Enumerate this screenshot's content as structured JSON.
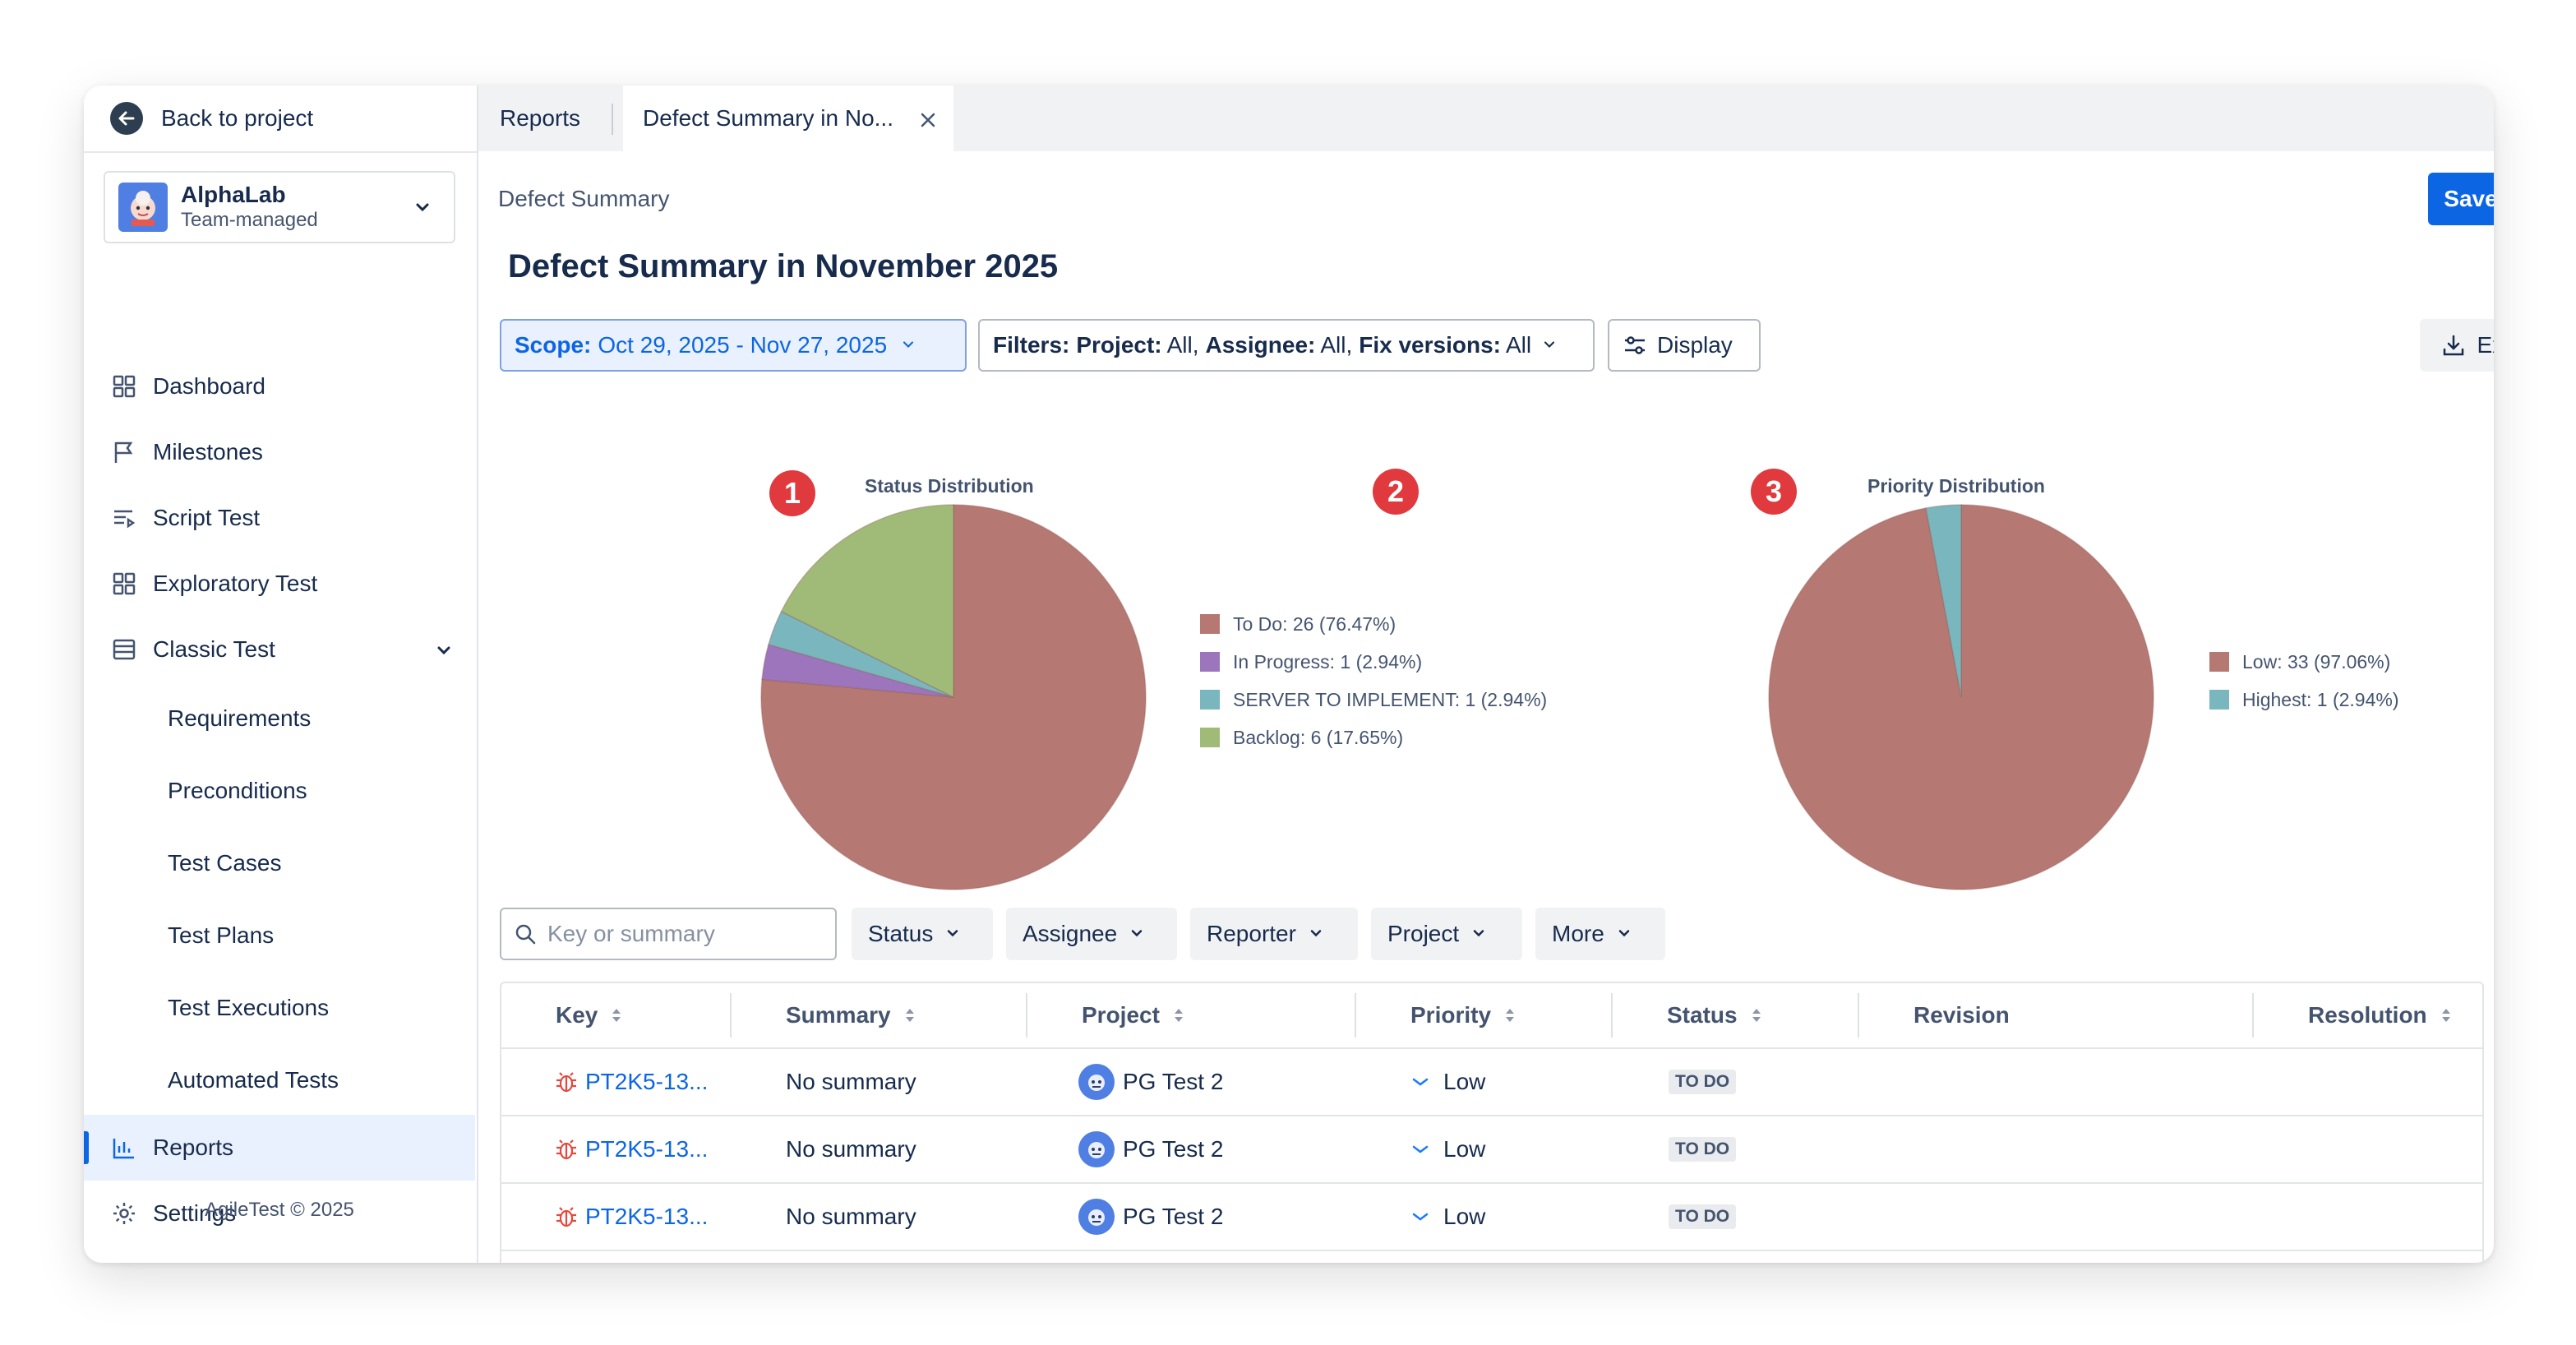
{
  "sidebar": {
    "back_label": "Back to project",
    "project": {
      "name": "AlphaLab",
      "type": "Team-managed"
    },
    "nav": [
      {
        "label": "Dashboard",
        "icon": "grid-icon"
      },
      {
        "label": "Milestones",
        "icon": "flag-icon"
      },
      {
        "label": "Script Test",
        "icon": "script-icon"
      },
      {
        "label": "Exploratory Test",
        "icon": "grid-icon"
      },
      {
        "label": "Classic Test",
        "icon": "classic-icon"
      }
    ],
    "classic_children": [
      "Requirements",
      "Preconditions",
      "Test Cases",
      "Test Plans",
      "Test Executions",
      "Automated Tests"
    ],
    "reports_label": "Reports",
    "settings_label": "Settings",
    "footer": "AgileTest © 2025"
  },
  "tabs": [
    {
      "label": "Reports"
    },
    {
      "label": "Defect Summary in No..."
    }
  ],
  "breadcrumb": "Defect Summary",
  "save_label": "Save",
  "page_title": "Defect Summary in November 2025",
  "toolbar_top": {
    "scope_label": "Scope:",
    "scope_value": "Oct 29, 2025 - Nov 27, 2025",
    "filters_label": "Filters:",
    "project_label": "Project:",
    "project_value": "All,",
    "assignee_label": "Assignee:",
    "assignee_value": "All,",
    "fix_label": "Fix versions:",
    "fix_value": "All",
    "display_label": "Display",
    "export_label": "Export"
  },
  "badges": [
    "1",
    "2",
    "3"
  ],
  "chart_data": [
    {
      "type": "pie",
      "title": "Status Distribution",
      "categories": [
        "To Do",
        "In Progress",
        "SERVER TO IMPLEMENT",
        "Backlog"
      ],
      "values": [
        26,
        1,
        1,
        6
      ],
      "legend_labels": [
        "To Do: 26 (76.47%)",
        "In Progress: 1 (2.94%)",
        "SERVER TO IMPLEMENT: 1 (2.94%)",
        "Backlog: 6 (17.65%)"
      ],
      "colors": [
        "#b57873",
        "#9c75bd",
        "#79b6bd",
        "#a0bb77"
      ],
      "legend_position": "right"
    },
    {
      "type": "pie",
      "title": "Priority Distribution",
      "categories": [
        "Low",
        "Highest"
      ],
      "values": [
        33,
        1
      ],
      "legend_labels": [
        "Low: 33 (97.06%)",
        "Highest: 1 (2.94%)"
      ],
      "colors": [
        "#b57873",
        "#79b6bd"
      ],
      "legend_position": "right"
    }
  ],
  "search_placeholder": "Key or summary",
  "filter_buttons": [
    "Status",
    "Assignee",
    "Reporter",
    "Project",
    "More"
  ],
  "table": {
    "columns": [
      "Key",
      "Summary",
      "Project",
      "Priority",
      "Status",
      "Revision",
      "Resolution"
    ],
    "rows": [
      {
        "key": "PT2K5-13...",
        "summary": "No summary",
        "project": "PG Test 2",
        "priority": "Low",
        "status": "TO DO",
        "revision": "",
        "resolution": ""
      },
      {
        "key": "PT2K5-13...",
        "summary": "No summary",
        "project": "PG Test 2",
        "priority": "Low",
        "status": "TO DO",
        "revision": "",
        "resolution": ""
      },
      {
        "key": "PT2K5-13...",
        "summary": "No summary",
        "project": "PG Test 2",
        "priority": "Low",
        "status": "TO DO",
        "revision": "",
        "resolution": ""
      }
    ]
  },
  "colors": {
    "accent": "#0c66e4",
    "badge": "#e03a3e"
  }
}
